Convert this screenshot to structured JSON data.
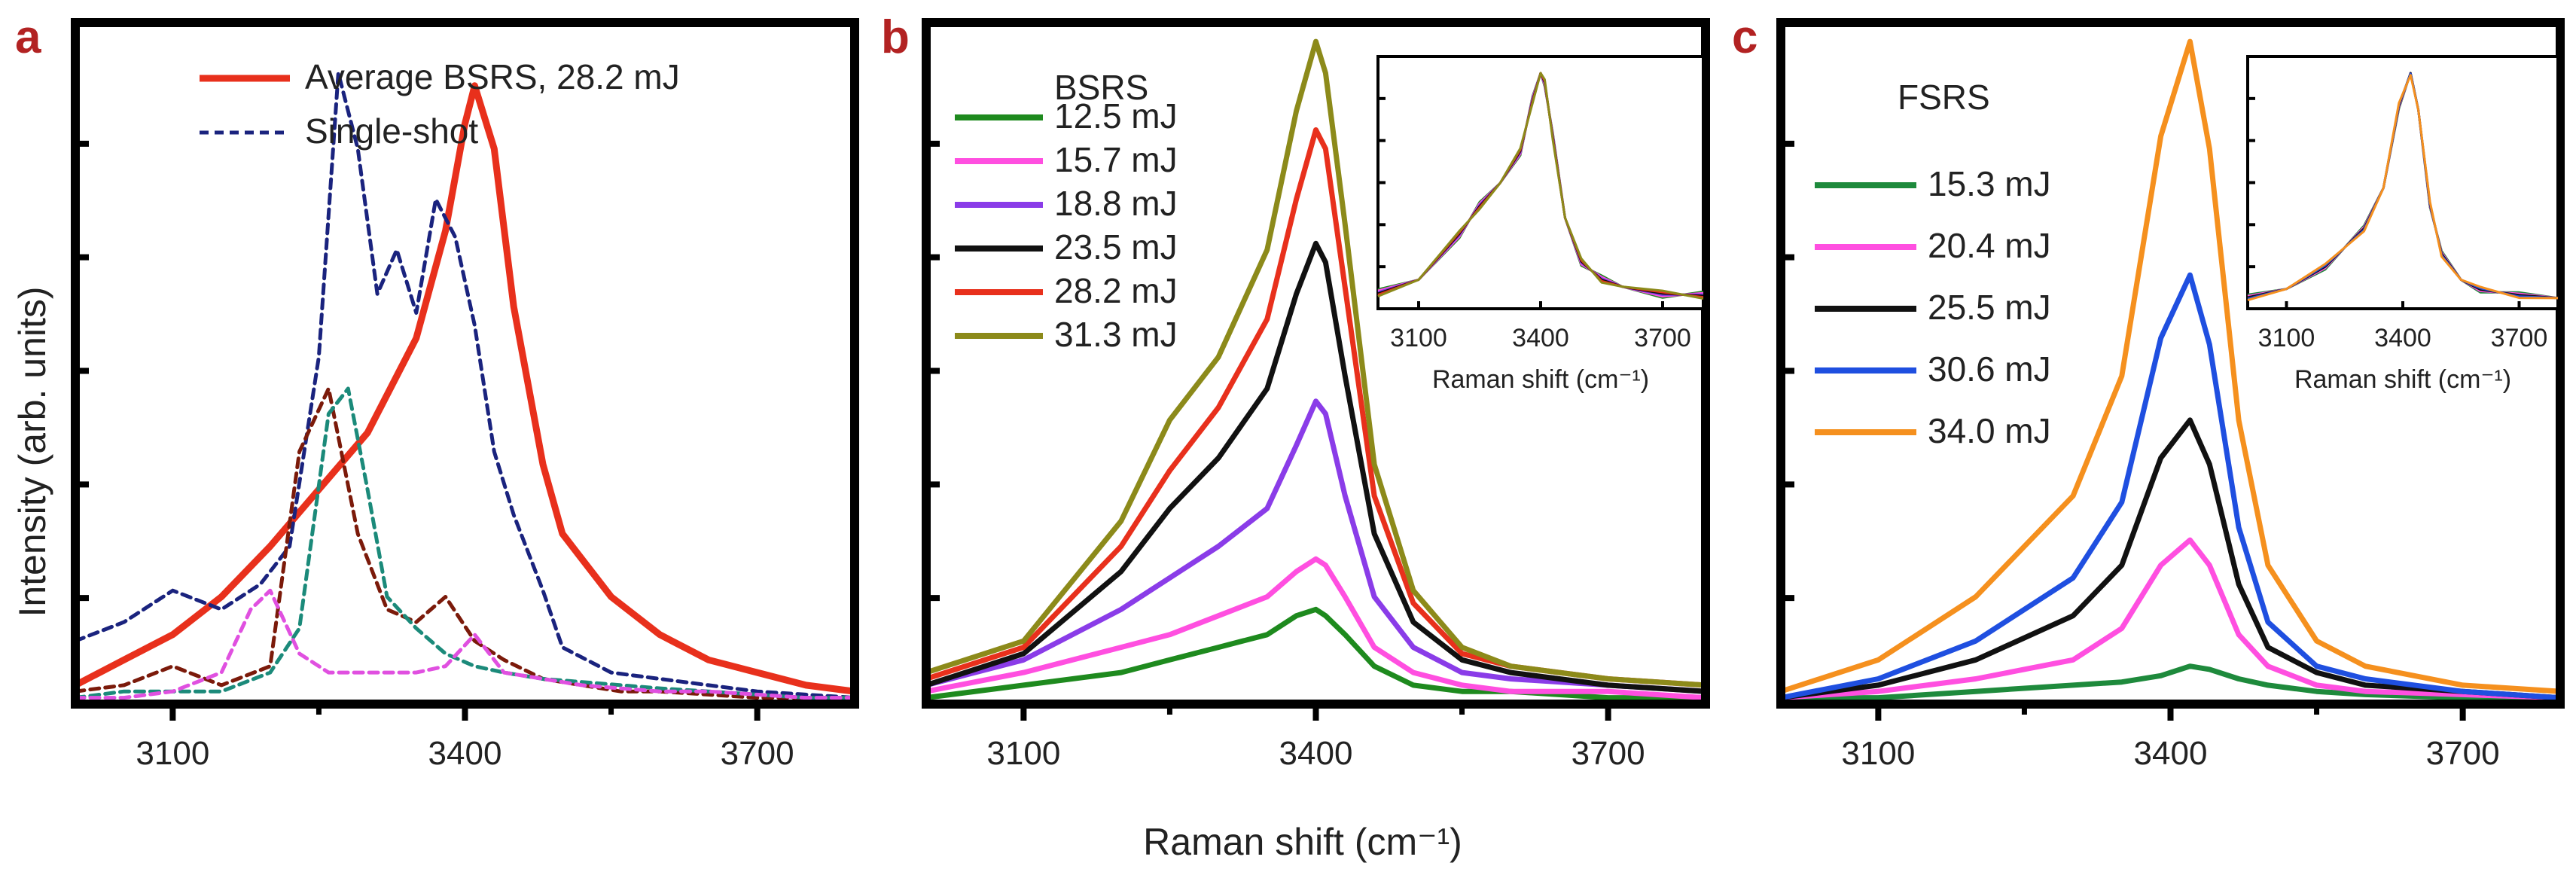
{
  "figure": {
    "ylabel": "Intensity (arb. units)",
    "xlabel": "Raman shift (cm⁻¹)"
  },
  "chart_data": [
    {
      "type": "line",
      "panel": "a",
      "xlim": [
        3000,
        3800
      ],
      "ylim": [
        0,
        1.08
      ],
      "xticks": [
        3100,
        3400,
        3700
      ],
      "series": [
        {
          "name": "Average BSRS, 28.2 mJ",
          "color": "#e8301c",
          "dashed": false,
          "x": [
            3000,
            3050,
            3100,
            3150,
            3200,
            3250,
            3300,
            3350,
            3380,
            3400,
            3410,
            3430,
            3450,
            3480,
            3500,
            3550,
            3600,
            3650,
            3700,
            3750,
            3800
          ],
          "y": [
            0.03,
            0.07,
            0.11,
            0.17,
            0.25,
            0.34,
            0.43,
            0.58,
            0.75,
            0.92,
            0.98,
            0.88,
            0.63,
            0.38,
            0.27,
            0.17,
            0.11,
            0.07,
            0.05,
            0.03,
            0.02
          ]
        },
        {
          "name": "Single-shot",
          "color": "#1a237e",
          "dashed": true,
          "x": [
            3000,
            3050,
            3100,
            3150,
            3190,
            3220,
            3250,
            3270,
            3290,
            3310,
            3330,
            3350,
            3370,
            3390,
            3410,
            3430,
            3450,
            3480,
            3500,
            3550,
            3600,
            3650,
            3700,
            3750,
            3800
          ],
          "y": [
            0.1,
            0.13,
            0.18,
            0.15,
            0.19,
            0.25,
            0.55,
            1.0,
            0.88,
            0.65,
            0.72,
            0.62,
            0.8,
            0.74,
            0.6,
            0.4,
            0.3,
            0.18,
            0.09,
            0.05,
            0.04,
            0.03,
            0.02,
            0.015,
            0.01
          ]
        },
        {
          "name": "",
          "color": "#7b1a0a",
          "dashed": true,
          "x": [
            3000,
            3050,
            3100,
            3150,
            3200,
            3230,
            3260,
            3290,
            3320,
            3350,
            3380,
            3410,
            3440,
            3480,
            3520,
            3560,
            3600,
            3650,
            3700,
            3750,
            3800
          ],
          "y": [
            0.02,
            0.03,
            0.06,
            0.03,
            0.06,
            0.4,
            0.5,
            0.27,
            0.15,
            0.13,
            0.17,
            0.1,
            0.07,
            0.04,
            0.03,
            0.02,
            0.02,
            0.015,
            0.01,
            0.01,
            0.01
          ]
        },
        {
          "name": "",
          "color": "#1b8a7a",
          "dashed": true,
          "x": [
            3000,
            3050,
            3100,
            3150,
            3200,
            3230,
            3260,
            3280,
            3300,
            3320,
            3350,
            3380,
            3410,
            3440,
            3480,
            3520,
            3560,
            3600,
            3650,
            3700,
            3750,
            3800
          ],
          "y": [
            0.01,
            0.02,
            0.02,
            0.02,
            0.05,
            0.12,
            0.46,
            0.5,
            0.34,
            0.17,
            0.12,
            0.08,
            0.06,
            0.05,
            0.04,
            0.035,
            0.03,
            0.025,
            0.02,
            0.015,
            0.01,
            0.01
          ]
        },
        {
          "name": "",
          "color": "#e050e0",
          "dashed": true,
          "x": [
            3000,
            3050,
            3100,
            3150,
            3180,
            3200,
            3230,
            3260,
            3300,
            3350,
            3380,
            3410,
            3440,
            3480,
            3520,
            3560,
            3600,
            3650,
            3700,
            3750,
            3800
          ],
          "y": [
            0.01,
            0.01,
            0.02,
            0.05,
            0.15,
            0.18,
            0.08,
            0.05,
            0.05,
            0.05,
            0.06,
            0.11,
            0.05,
            0.04,
            0.03,
            0.025,
            0.02,
            0.02,
            0.015,
            0.01,
            0.01
          ]
        }
      ]
    },
    {
      "type": "line",
      "panel": "b",
      "xlim": [
        3000,
        3800
      ],
      "ylim": [
        0,
        1.08
      ],
      "xticks": [
        3100,
        3400,
        3700
      ],
      "legend_title": "BSRS",
      "series": [
        {
          "name": "12.5 mJ",
          "color": "#1e8a1e",
          "x": [
            3000,
            3100,
            3200,
            3250,
            3300,
            3350,
            3380,
            3400,
            3410,
            3430,
            3460,
            3500,
            3550,
            3600,
            3700,
            3800
          ],
          "y": [
            0.01,
            0.03,
            0.05,
            0.07,
            0.09,
            0.11,
            0.14,
            0.15,
            0.14,
            0.11,
            0.06,
            0.03,
            0.02,
            0.02,
            0.01,
            0.01
          ]
        },
        {
          "name": "15.7 mJ",
          "color": "#ff4fe0",
          "x": [
            3000,
            3100,
            3200,
            3250,
            3300,
            3350,
            3380,
            3400,
            3410,
            3430,
            3460,
            3500,
            3550,
            3600,
            3700,
            3800
          ],
          "y": [
            0.02,
            0.05,
            0.09,
            0.11,
            0.14,
            0.17,
            0.21,
            0.23,
            0.22,
            0.17,
            0.09,
            0.05,
            0.03,
            0.02,
            0.02,
            0.01
          ]
        },
        {
          "name": "18.8 mJ",
          "color": "#8a3ce8",
          "x": [
            3000,
            3100,
            3200,
            3250,
            3300,
            3350,
            3380,
            3400,
            3410,
            3430,
            3460,
            3500,
            3550,
            3600,
            3700,
            3800
          ],
          "y": [
            0.03,
            0.07,
            0.15,
            0.2,
            0.25,
            0.31,
            0.41,
            0.48,
            0.46,
            0.33,
            0.17,
            0.09,
            0.05,
            0.04,
            0.03,
            0.02
          ]
        },
        {
          "name": "23.5 mJ",
          "color": "#111111",
          "x": [
            3000,
            3100,
            3200,
            3250,
            3300,
            3350,
            3380,
            3400,
            3410,
            3430,
            3460,
            3500,
            3550,
            3600,
            3700,
            3800
          ],
          "y": [
            0.03,
            0.08,
            0.21,
            0.31,
            0.39,
            0.5,
            0.65,
            0.73,
            0.7,
            0.52,
            0.27,
            0.13,
            0.07,
            0.05,
            0.03,
            0.02
          ]
        },
        {
          "name": "28.2 mJ",
          "color": "#e8301c",
          "x": [
            3000,
            3100,
            3200,
            3250,
            3300,
            3350,
            3380,
            3400,
            3410,
            3430,
            3460,
            3500,
            3550,
            3600,
            3700,
            3800
          ],
          "y": [
            0.04,
            0.09,
            0.25,
            0.37,
            0.47,
            0.61,
            0.8,
            0.91,
            0.88,
            0.66,
            0.33,
            0.16,
            0.08,
            0.06,
            0.04,
            0.03
          ]
        },
        {
          "name": "31.3 mJ",
          "color": "#8c8a1a",
          "x": [
            3000,
            3100,
            3200,
            3250,
            3300,
            3350,
            3380,
            3400,
            3410,
            3430,
            3460,
            3500,
            3550,
            3600,
            3700,
            3800
          ],
          "y": [
            0.05,
            0.1,
            0.29,
            0.45,
            0.55,
            0.72,
            0.94,
            1.05,
            1.0,
            0.76,
            0.38,
            0.18,
            0.09,
            0.06,
            0.04,
            0.03
          ]
        }
      ],
      "inset": {
        "xlim": [
          3000,
          3800
        ],
        "xticks": [
          3100,
          3400,
          3700
        ],
        "xlabel": "Raman shift (cm⁻¹)",
        "series_colors": [
          "#1e8a1e",
          "#ff4fe0",
          "#8a3ce8",
          "#111111",
          "#e8301c",
          "#8c8a1a"
        ],
        "x": [
          3000,
          3100,
          3200,
          3250,
          3300,
          3350,
          3380,
          3400,
          3410,
          3430,
          3460,
          3500,
          3550,
          3600,
          3700,
          3800
        ],
        "y": [
          0.04,
          0.1,
          0.3,
          0.42,
          0.52,
          0.66,
          0.88,
          1.0,
          0.96,
          0.72,
          0.37,
          0.18,
          0.1,
          0.07,
          0.04,
          0.03
        ]
      }
    },
    {
      "type": "line",
      "panel": "c",
      "xlim": [
        3000,
        3800
      ],
      "ylim": [
        0,
        1.08
      ],
      "xticks": [
        3100,
        3400,
        3700
      ],
      "legend_title": "FSRS",
      "series": [
        {
          "name": "15.3 mJ",
          "color": "#1e8a3c",
          "x": [
            3000,
            3100,
            3200,
            3300,
            3350,
            3390,
            3420,
            3440,
            3470,
            3500,
            3550,
            3600,
            3700,
            3800
          ],
          "y": [
            0.01,
            0.01,
            0.02,
            0.03,
            0.035,
            0.045,
            0.06,
            0.055,
            0.04,
            0.03,
            0.02,
            0.015,
            0.01,
            0.01
          ]
        },
        {
          "name": "20.4 mJ",
          "color": "#ff4fe0",
          "x": [
            3000,
            3100,
            3200,
            3300,
            3350,
            3390,
            3420,
            3440,
            3470,
            3500,
            3550,
            3600,
            3700,
            3800
          ],
          "y": [
            0.01,
            0.02,
            0.04,
            0.07,
            0.12,
            0.22,
            0.26,
            0.22,
            0.11,
            0.06,
            0.03,
            0.02,
            0.015,
            0.01
          ]
        },
        {
          "name": "25.5 mJ",
          "color": "#111111",
          "x": [
            3000,
            3100,
            3200,
            3300,
            3350,
            3390,
            3420,
            3440,
            3470,
            3500,
            3550,
            3600,
            3700,
            3800
          ],
          "y": [
            0.01,
            0.03,
            0.07,
            0.14,
            0.22,
            0.39,
            0.45,
            0.38,
            0.19,
            0.09,
            0.05,
            0.03,
            0.02,
            0.01
          ]
        },
        {
          "name": "30.6 mJ",
          "color": "#1f4fe0",
          "x": [
            3000,
            3100,
            3200,
            3300,
            3350,
            3390,
            3420,
            3440,
            3470,
            3500,
            3550,
            3600,
            3700,
            3800
          ],
          "y": [
            0.01,
            0.04,
            0.1,
            0.2,
            0.32,
            0.58,
            0.68,
            0.57,
            0.28,
            0.13,
            0.06,
            0.04,
            0.02,
            0.01
          ]
        },
        {
          "name": "34.0 mJ",
          "color": "#f5901e",
          "x": [
            3000,
            3100,
            3200,
            3300,
            3350,
            3390,
            3420,
            3440,
            3470,
            3500,
            3550,
            3600,
            3700,
            3800
          ],
          "y": [
            0.02,
            0.07,
            0.17,
            0.33,
            0.52,
            0.9,
            1.05,
            0.88,
            0.45,
            0.22,
            0.1,
            0.06,
            0.03,
            0.02
          ]
        }
      ],
      "inset": {
        "xlim": [
          3000,
          3800
        ],
        "xticks": [
          3100,
          3400,
          3700
        ],
        "xlabel": "Raman shift (cm⁻¹)",
        "series_colors": [
          "#1e8a3c",
          "#ff4fe0",
          "#111111",
          "#1f4fe0",
          "#f5901e"
        ],
        "x": [
          3000,
          3100,
          3200,
          3300,
          3350,
          3390,
          3420,
          3440,
          3470,
          3500,
          3550,
          3600,
          3700,
          3800
        ],
        "y": [
          0.02,
          0.06,
          0.16,
          0.32,
          0.5,
          0.86,
          1.0,
          0.84,
          0.43,
          0.21,
          0.1,
          0.06,
          0.03,
          0.02
        ]
      }
    }
  ]
}
